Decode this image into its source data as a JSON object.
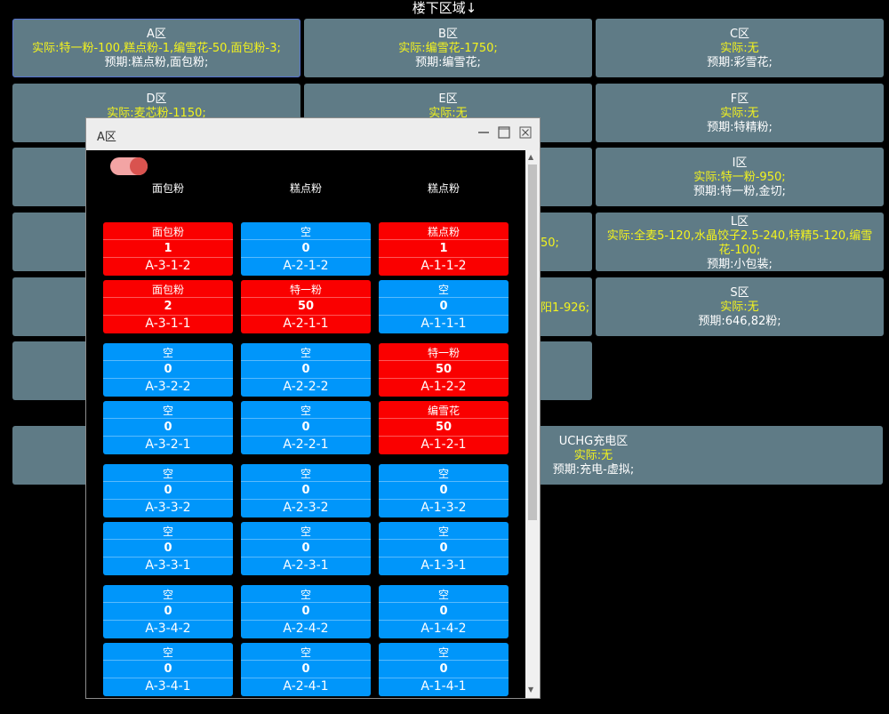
{
  "page_title": "楼下区域↓",
  "zones": [
    {
      "name": "A区",
      "actual": "实际:特一粉-100,糕点粉-1,编雪花-50,面包粉-3;",
      "planned": "预期:糕点粉,面包粉;"
    },
    {
      "name": "B区",
      "actual": "实际:编雪花-1750;",
      "planned": "预期:编雪花;"
    },
    {
      "name": "C区",
      "actual": "实际:无",
      "planned": "预期:彩雪花;"
    },
    {
      "name": "D区",
      "actual": "实际:麦芯粉-1150;",
      "planned": ""
    },
    {
      "name": "E区",
      "actual": "实际:无",
      "planned": ""
    },
    {
      "name": "F区",
      "actual": "实际:无",
      "planned": "预期:特精粉;"
    },
    {
      "name": "I区",
      "actual": "实际:特一粉-950;",
      "planned": "预期:特一粉,金切;"
    },
    {
      "name": "L区",
      "actual": "实际:全麦5-120,水晶饺子2.5-240,特精5-120,编雪花-100;",
      "planned": "预期:小包装;"
    },
    {
      "name": "S区",
      "actual": "实际:无",
      "planned": "预期:646,82粉;"
    },
    {
      "name": "UCHG充电区",
      "actual": "实际:无",
      "planned": "预期:充电-虚拟;"
    }
  ],
  "partial_fragments": {
    "h": "50;",
    "k": "阳1-926;"
  },
  "dialog": {
    "title": "A区",
    "column_labels": [
      "面包粉",
      "糕点粉",
      "糕点粉"
    ],
    "rows": [
      [
        {
          "p": "面包粉",
          "q": "1",
          "c": "A-3-1-2",
          "s": "full"
        },
        {
          "p": "空",
          "q": "0",
          "c": "A-2-1-2",
          "s": "empty"
        },
        {
          "p": "糕点粉",
          "q": "1",
          "c": "A-1-1-2",
          "s": "full"
        }
      ],
      [
        {
          "p": "面包粉",
          "q": "2",
          "c": "A-3-1-1",
          "s": "full"
        },
        {
          "p": "特一粉",
          "q": "50",
          "c": "A-2-1-1",
          "s": "full"
        },
        {
          "p": "空",
          "q": "0",
          "c": "A-1-1-1",
          "s": "empty"
        }
      ],
      [
        {
          "p": "空",
          "q": "0",
          "c": "A-3-2-2",
          "s": "empty"
        },
        {
          "p": "空",
          "q": "0",
          "c": "A-2-2-2",
          "s": "empty"
        },
        {
          "p": "特一粉",
          "q": "50",
          "c": "A-1-2-2",
          "s": "full"
        }
      ],
      [
        {
          "p": "空",
          "q": "0",
          "c": "A-3-2-1",
          "s": "empty"
        },
        {
          "p": "空",
          "q": "0",
          "c": "A-2-2-1",
          "s": "empty"
        },
        {
          "p": "编雪花",
          "q": "50",
          "c": "A-1-2-1",
          "s": "full"
        }
      ],
      [
        {
          "p": "空",
          "q": "0",
          "c": "A-3-3-2",
          "s": "empty"
        },
        {
          "p": "空",
          "q": "0",
          "c": "A-2-3-2",
          "s": "empty"
        },
        {
          "p": "空",
          "q": "0",
          "c": "A-1-3-2",
          "s": "empty"
        }
      ],
      [
        {
          "p": "空",
          "q": "0",
          "c": "A-3-3-1",
          "s": "empty"
        },
        {
          "p": "空",
          "q": "0",
          "c": "A-2-3-1",
          "s": "empty"
        },
        {
          "p": "空",
          "q": "0",
          "c": "A-1-3-1",
          "s": "empty"
        }
      ],
      [
        {
          "p": "空",
          "q": "0",
          "c": "A-3-4-2",
          "s": "empty"
        },
        {
          "p": "空",
          "q": "0",
          "c": "A-2-4-2",
          "s": "empty"
        },
        {
          "p": "空",
          "q": "0",
          "c": "A-1-4-2",
          "s": "empty"
        }
      ],
      [
        {
          "p": "空",
          "q": "0",
          "c": "A-3-4-1",
          "s": "empty"
        },
        {
          "p": "空",
          "q": "0",
          "c": "A-2-4-1",
          "s": "empty"
        },
        {
          "p": "空",
          "q": "0",
          "c": "A-1-4-1",
          "s": "empty"
        }
      ]
    ]
  },
  "colors": {
    "empty_cell": "#0096fa",
    "full_cell": "#fa0000",
    "zone_bg": "#5f7b86",
    "actual_text": "#f3f31e"
  }
}
